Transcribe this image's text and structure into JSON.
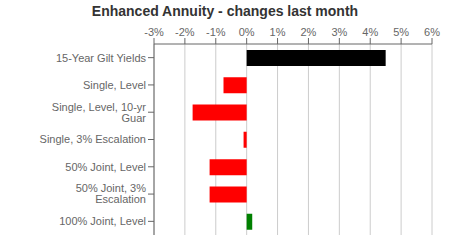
{
  "chart_data": {
    "type": "bar",
    "orientation": "horizontal",
    "title": "Enhanced Annuity - changes last month",
    "categories": [
      "15-Year Gilt Yields",
      "Single, Level",
      "Single, Level, 10-yr Guar",
      "Single, 3% Escalation",
      "50% Joint, Level",
      "50% Joint, 3% Escalation",
      "100% Joint, Level"
    ],
    "values": [
      4.5,
      -0.75,
      -1.75,
      -0.1,
      -1.2,
      -1.2,
      0.18
    ],
    "colors": [
      "#000000",
      "#ff0000",
      "#ff0000",
      "#ff0000",
      "#ff0000",
      "#ff0000",
      "#008000"
    ],
    "xlim": [
      -3,
      6
    ],
    "xticks": [
      {
        "value": -3,
        "label": "-3%"
      },
      {
        "value": -2,
        "label": "-2%"
      },
      {
        "value": -1,
        "label": "-1%"
      },
      {
        "value": 0,
        "label": "0%"
      },
      {
        "value": 1,
        "label": "1%"
      },
      {
        "value": 2,
        "label": "2%"
      },
      {
        "value": 3,
        "label": "3%"
      },
      {
        "value": 4,
        "label": "4%"
      },
      {
        "value": 5,
        "label": "5%"
      },
      {
        "value": 6,
        "label": "6%"
      }
    ],
    "grid": true
  }
}
